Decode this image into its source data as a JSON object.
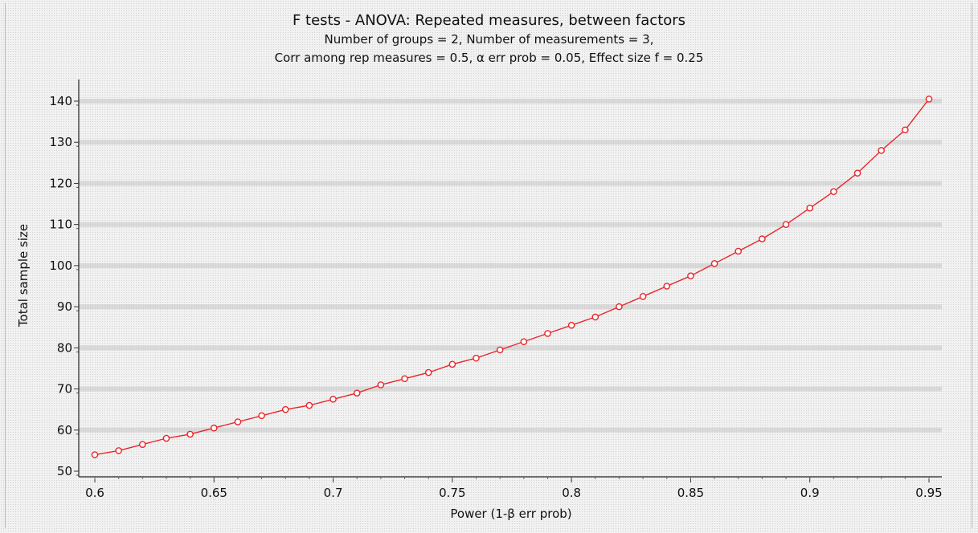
{
  "chart_data": {
    "type": "line",
    "title": "F tests - ANOVA: Repeated measures, between factors",
    "subtitle_lines": [
      "Number of groups = 2, Number of measurements = 3,",
      "Corr among rep measures = 0.5, α err prob = 0.05, Effect size f = 0.25"
    ],
    "xlabel": "Power (1-β err prob)",
    "ylabel": "Total sample size",
    "xlim": [
      0.6,
      0.95
    ],
    "ylim": [
      50,
      140
    ],
    "x_ticks": [
      "0.6",
      "0.65",
      "0.7",
      "0.75",
      "0.8",
      "0.85",
      "0.9",
      "0.95"
    ],
    "y_ticks": [
      "50",
      "60",
      "70",
      "80",
      "90",
      "100",
      "110",
      "120",
      "130",
      "140"
    ],
    "grid": true,
    "series": [
      {
        "color": "#e8262b",
        "marker": "open-circle",
        "x": [
          0.6,
          0.61,
          0.62,
          0.63,
          0.64,
          0.65,
          0.66,
          0.67,
          0.68,
          0.69,
          0.7,
          0.71,
          0.72,
          0.73,
          0.74,
          0.75,
          0.76,
          0.77,
          0.78,
          0.79,
          0.8,
          0.81,
          0.82,
          0.83,
          0.84,
          0.85,
          0.86,
          0.87,
          0.88,
          0.89,
          0.9,
          0.91,
          0.92,
          0.93,
          0.94,
          0.95
        ],
        "values": [
          54,
          55,
          56.5,
          58,
          59,
          60.5,
          62,
          63.5,
          65,
          66,
          67.5,
          69,
          71,
          72.5,
          74,
          76,
          77.5,
          79.5,
          81.5,
          83.5,
          85.5,
          87.5,
          90,
          92.5,
          95,
          97.5,
          100.5,
          103.5,
          106.5,
          110,
          114,
          118,
          122.5,
          128,
          133,
          140.5
        ]
      }
    ]
  }
}
